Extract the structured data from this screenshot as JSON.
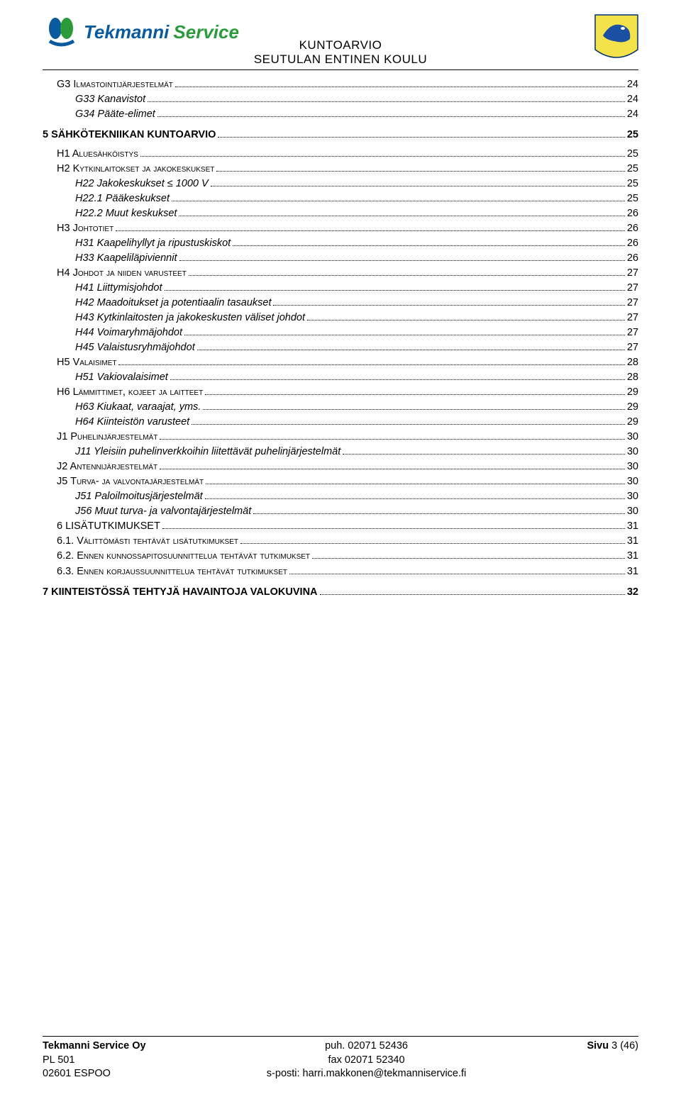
{
  "header": {
    "logo_brand": "Tekmanni",
    "logo_sub": "Service",
    "doc_title1": "KUNTOARVIO",
    "doc_title2": "SEUTULAN ENTINEN KOULU"
  },
  "crest": {
    "bg": "#f4e24a",
    "bird_body": "#1a4fa3",
    "bird_accent": "#ffffff",
    "border": "#003070"
  },
  "logo_mark": {
    "c1": "#0a5aa0",
    "c2": "#2a9a3a"
  },
  "toc": [
    {
      "level": "l1",
      "label": "G3 Ilmastointijärjestelmät",
      "page": "24",
      "smallcaps": true
    },
    {
      "level": "l2",
      "label": "G33 Kanavistot",
      "page": "24",
      "italic": true
    },
    {
      "level": "l2",
      "label": "G34 Pääte-elimet",
      "page": "24",
      "italic": true
    },
    {
      "level": "h0",
      "label": "5    SÄHKÖTEKNIIKAN KUNTOARVIO",
      "page": "25",
      "bold": true
    },
    {
      "level": "l1",
      "label": "H1 Aluesähköistys",
      "page": "25",
      "smallcaps": true
    },
    {
      "level": "l1",
      "label": "H2 Kytkinlaitokset ja jakokeskukset",
      "page": "25",
      "smallcaps": true
    },
    {
      "level": "l2",
      "label": "H22 Jakokeskukset ≤ 1000 V",
      "page": "25",
      "italic": true
    },
    {
      "level": "l2",
      "label": "H22.1 Pääkeskukset",
      "page": "25",
      "italic": true
    },
    {
      "level": "l2",
      "label": "H22.2 Muut keskukset",
      "page": "26",
      "italic": true
    },
    {
      "level": "l1",
      "label": "H3 Johtotiet",
      "page": "26",
      "smallcaps": true
    },
    {
      "level": "l2",
      "label": "H31 Kaapelihyllyt ja ripustuskiskot",
      "page": "26",
      "italic": true
    },
    {
      "level": "l2",
      "label": "H33 Kaapeliläpiviennit",
      "page": "26",
      "italic": true
    },
    {
      "level": "l1",
      "label": "H4 Johdot ja niiden varusteet",
      "page": "27",
      "smallcaps": true
    },
    {
      "level": "l2",
      "label": "H41 Liittymisjohdot",
      "page": "27",
      "italic": true
    },
    {
      "level": "l2",
      "label": "H42 Maadoitukset ja potentiaalin tasaukset",
      "page": "27",
      "italic": true
    },
    {
      "level": "l2",
      "label": "H43 Kytkinlaitosten ja jakokeskusten väliset johdot",
      "page": "27",
      "italic": true
    },
    {
      "level": "l2",
      "label": "H44 Voimaryhmäjohdot",
      "page": "27",
      "italic": true
    },
    {
      "level": "l2",
      "label": "H45 Valaistusryhmäjohdot",
      "page": "27",
      "italic": true
    },
    {
      "level": "l1",
      "label": "H5 Valaisimet",
      "page": "28",
      "smallcaps": true
    },
    {
      "level": "l2",
      "label": "H51 Vakiovalaisimet",
      "page": "28",
      "italic": true
    },
    {
      "level": "l1",
      "label": "H6 Lämmittimet, kojeet ja laitteet",
      "page": "29",
      "smallcaps": true
    },
    {
      "level": "l2",
      "label": "H63 Kiukaat, varaajat, yms.",
      "page": "29",
      "italic": true
    },
    {
      "level": "l2",
      "label": "H64 Kiinteistön varusteet",
      "page": "29",
      "italic": true
    },
    {
      "level": "l1",
      "label": "J1 Puhelinjärjestelmät",
      "page": "30",
      "smallcaps": true
    },
    {
      "level": "l2",
      "label": "J11 Yleisiin puhelinverkkoihin liitettävät puhelinjärjestelmät",
      "page": "30",
      "italic": true
    },
    {
      "level": "l1",
      "label": "J2 Antennijärjestelmät",
      "page": "30",
      "smallcaps": true
    },
    {
      "level": "l1",
      "label": "J5 Turva- ja valvontajärjestelmät",
      "page": "30",
      "smallcaps": true
    },
    {
      "level": "l2",
      "label": "J51 Paloilmoitusjärjestelmät",
      "page": "30",
      "italic": true
    },
    {
      "level": "l2",
      "label": "J56 Muut turva- ja valvontajärjestelmät",
      "page": "30",
      "italic": true
    },
    {
      "level": "l1",
      "label": "6     LISÄTUTKIMUKSET",
      "page": "31"
    },
    {
      "level": "l1",
      "label": "6.1. Välittömästi tehtävät lisätutkimukset",
      "page": "31",
      "smallcaps": true
    },
    {
      "level": "l1",
      "label": "6.2. Ennen kunnossapitosuunnittelua tehtävät tutkimukset",
      "page": "31",
      "smallcaps": true
    },
    {
      "level": "l1",
      "label": "6.3. Ennen korjaussuunnittelua tehtävät tutkimukset",
      "page": "31",
      "smallcaps": true
    },
    {
      "level": "h0",
      "label": "7    KIINTEISTÖSSÄ TEHTYJÄ HAVAINTOJA VALOKUVINA",
      "page": "32",
      "bold": true
    }
  ],
  "footer": {
    "col1_l1": "Tekmanni Service Oy",
    "col1_l2": "PL 501",
    "col1_l3": "02601 ESPOO",
    "col2_l1": "puh. 02071 52436",
    "col2_l2": "fax 02071 52340",
    "col2_l3": "s-posti: harri.makkonen@tekmanniservice.fi",
    "col3_label": "Sivu ",
    "col3_page": "3 (46)"
  }
}
